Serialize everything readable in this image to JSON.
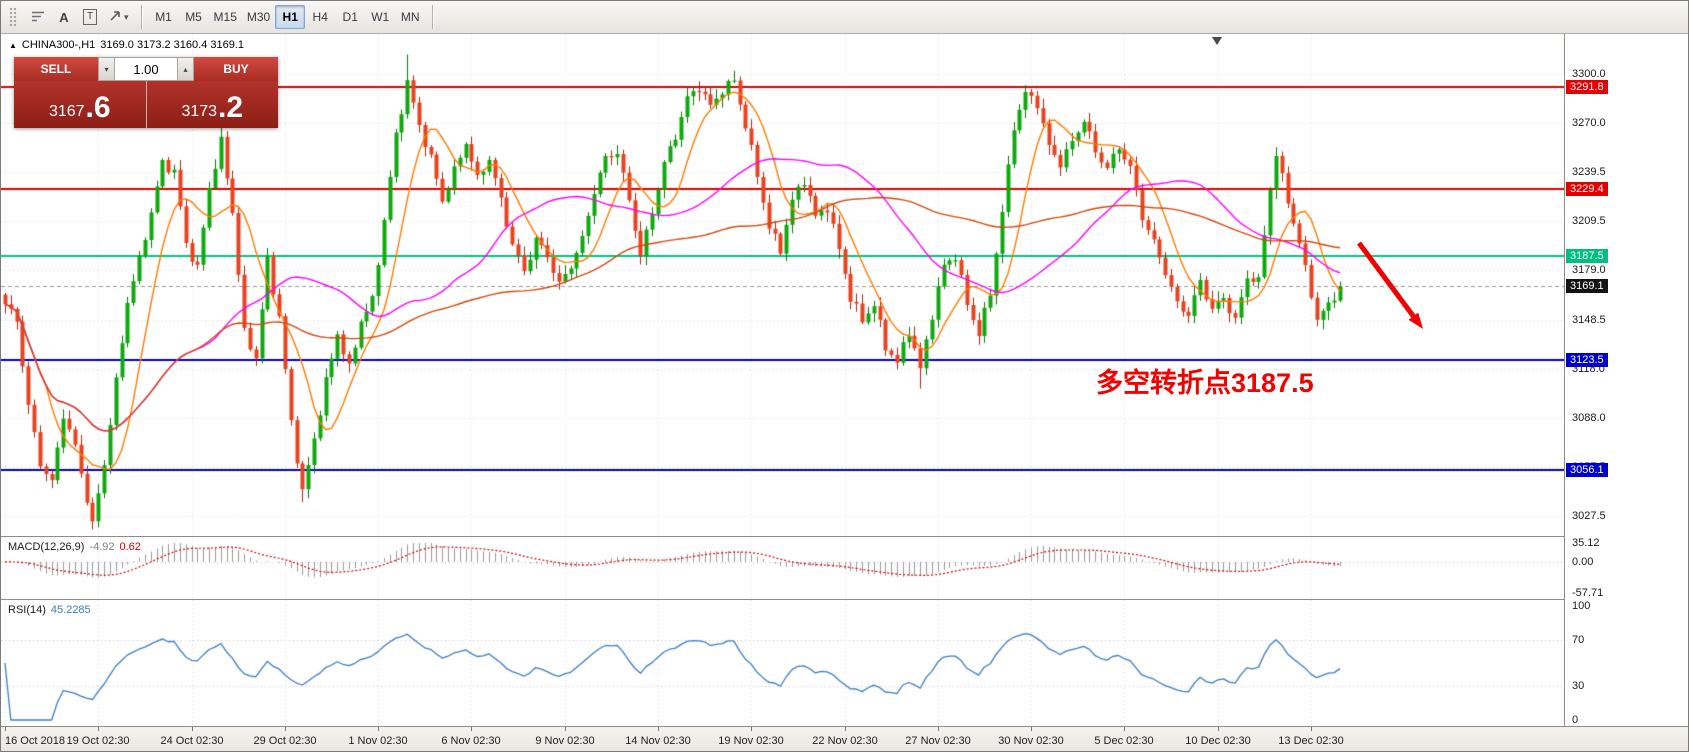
{
  "toolbar": {
    "tools": [
      {
        "name": "indicator-levels",
        "label": ""
      },
      {
        "name": "text-tool",
        "label": "A"
      },
      {
        "name": "label-tool",
        "label": "T"
      },
      {
        "name": "arrow-objects",
        "label": "",
        "dropdown_icon": "▾"
      }
    ],
    "timeframes": [
      {
        "label": "M1",
        "active": false
      },
      {
        "label": "M5",
        "active": false
      },
      {
        "label": "M15",
        "active": false
      },
      {
        "label": "M30",
        "active": false
      },
      {
        "label": "H1",
        "active": true
      },
      {
        "label": "H4",
        "active": false
      },
      {
        "label": "D1",
        "active": false
      },
      {
        "label": "W1",
        "active": false
      },
      {
        "label": "MN",
        "active": false
      }
    ]
  },
  "chart_header": {
    "toggle_icon": "▲",
    "symbol_period": "CHINA300-,H1",
    "ohlc_text": "3169.0 3173.2 3160.4 3169.1"
  },
  "trade_panel": {
    "sell_label": "SELL",
    "buy_label": "BUY",
    "volume": "1.00",
    "volume_down_icon": "▾",
    "volume_up_icon": "▴",
    "sell_price_prefix": "3167",
    "sell_price_big": ".6",
    "buy_price_prefix": "3173",
    "buy_price_big": ".2"
  },
  "price_axis": {
    "badges": [
      {
        "label": "3291.8",
        "price": 3291.8,
        "bg": "#e20000"
      },
      {
        "label": "3229.4",
        "price": 3229.4,
        "bg": "#e20000"
      },
      {
        "label": "3187.5",
        "price": 3187.5,
        "bg": "#00bf80"
      },
      {
        "label": "3169.1",
        "price": 3169.1,
        "bg": "#141414"
      },
      {
        "label": "3123.5",
        "price": 3123.5,
        "bg": "#0000cc"
      },
      {
        "label": "3056.1",
        "price": 3056.1,
        "bg": "#0000cc"
      }
    ]
  },
  "macd_panel": {
    "name": "MACD(12,26,9)",
    "main_value": "-4.92",
    "signal_value": "0.62",
    "axis_labels": [
      "35.12",
      "0.00",
      "-57.71"
    ]
  },
  "rsi_panel": {
    "name": "RSI(14)",
    "value": "45.2285",
    "axis_labels": [
      "100",
      "70",
      "30",
      "0"
    ]
  },
  "annotation": {
    "text": "多空转折点3187.5",
    "color": "#f40000"
  },
  "arrow": {
    "color": "#f40000"
  },
  "chart_data": {
    "type": "candlestick",
    "title": "CHINA300- H1 chart",
    "symbol": "CHINA300-",
    "timeframe": "H1",
    "last_ohlc": {
      "open": 3169.0,
      "high": 3173.2,
      "low": 3160.4,
      "close": 3169.1
    },
    "last_close": 3169.1,
    "num_bars": 230,
    "y_axis": {
      "top_price": 3300.0,
      "bottom_price": 3027.5
    },
    "price_ticks": [
      3300.0,
      3270.0,
      3239.5,
      3209.5,
      3179.0,
      3148.5,
      3118.0,
      3088.0,
      3057.5,
      3027.5
    ],
    "close_anchors": [
      [
        0,
        3158
      ],
      [
        2,
        3148
      ],
      [
        4,
        3095
      ],
      [
        6,
        3060
      ],
      [
        8,
        3048
      ],
      [
        10,
        3090
      ],
      [
        12,
        3070
      ],
      [
        14,
        3038
      ],
      [
        15,
        3022
      ],
      [
        17,
        3060
      ],
      [
        19,
        3110
      ],
      [
        21,
        3160
      ],
      [
        23,
        3185
      ],
      [
        25,
        3215
      ],
      [
        27,
        3245
      ],
      [
        29,
        3240
      ],
      [
        31,
        3195
      ],
      [
        33,
        3180
      ],
      [
        35,
        3230
      ],
      [
        37,
        3258
      ],
      [
        39,
        3215
      ],
      [
        41,
        3140
      ],
      [
        43,
        3125
      ],
      [
        45,
        3185
      ],
      [
        47,
        3150
      ],
      [
        49,
        3085
      ],
      [
        51,
        3042
      ],
      [
        53,
        3075
      ],
      [
        55,
        3110
      ],
      [
        57,
        3140
      ],
      [
        59,
        3118
      ],
      [
        61,
        3148
      ],
      [
        63,
        3160
      ],
      [
        65,
        3210
      ],
      [
        67,
        3262
      ],
      [
        69,
        3295
      ],
      [
        71,
        3268
      ],
      [
        73,
        3248
      ],
      [
        75,
        3222
      ],
      [
        77,
        3240
      ],
      [
        79,
        3258
      ],
      [
        81,
        3235
      ],
      [
        83,
        3248
      ],
      [
        85,
        3222
      ],
      [
        87,
        3195
      ],
      [
        89,
        3178
      ],
      [
        91,
        3198
      ],
      [
        93,
        3188
      ],
      [
        95,
        3170
      ],
      [
        97,
        3182
      ],
      [
        99,
        3198
      ],
      [
        101,
        3228
      ],
      [
        103,
        3248
      ],
      [
        105,
        3252
      ],
      [
        107,
        3222
      ],
      [
        109,
        3188
      ],
      [
        111,
        3215
      ],
      [
        113,
        3245
      ],
      [
        115,
        3262
      ],
      [
        117,
        3285
      ],
      [
        119,
        3292
      ],
      [
        121,
        3280
      ],
      [
        123,
        3290
      ],
      [
        125,
        3296
      ],
      [
        127,
        3268
      ],
      [
        129,
        3238
      ],
      [
        131,
        3205
      ],
      [
        133,
        3192
      ],
      [
        135,
        3222
      ],
      [
        137,
        3235
      ],
      [
        139,
        3212
      ],
      [
        141,
        3218
      ],
      [
        143,
        3192
      ],
      [
        145,
        3162
      ],
      [
        147,
        3148
      ],
      [
        149,
        3158
      ],
      [
        151,
        3132
      ],
      [
        153,
        3122
      ],
      [
        155,
        3142
      ],
      [
        157,
        3118
      ],
      [
        159,
        3152
      ],
      [
        161,
        3182
      ],
      [
        163,
        3188
      ],
      [
        165,
        3158
      ],
      [
        167,
        3140
      ],
      [
        169,
        3165
      ],
      [
        171,
        3215
      ],
      [
        173,
        3268
      ],
      [
        175,
        3288
      ],
      [
        177,
        3282
      ],
      [
        179,
        3255
      ],
      [
        181,
        3245
      ],
      [
        183,
        3258
      ],
      [
        185,
        3272
      ],
      [
        187,
        3252
      ],
      [
        189,
        3242
      ],
      [
        191,
        3255
      ],
      [
        193,
        3242
      ],
      [
        195,
        3212
      ],
      [
        197,
        3196
      ],
      [
        199,
        3178
      ],
      [
        201,
        3158
      ],
      [
        203,
        3152
      ],
      [
        205,
        3172
      ],
      [
        207,
        3155
      ],
      [
        209,
        3162
      ],
      [
        211,
        3148
      ],
      [
        213,
        3175
      ],
      [
        215,
        3172
      ],
      [
        217,
        3230
      ],
      [
        218,
        3250
      ],
      [
        220,
        3222
      ],
      [
        222,
        3195
      ],
      [
        224,
        3165
      ],
      [
        225,
        3148
      ],
      [
        227,
        3158
      ],
      [
        229,
        3169.1
      ]
    ],
    "wick_overrides": [
      {
        "i": 15,
        "low": 3030
      },
      {
        "i": 51,
        "low": 3036
      },
      {
        "i": 69,
        "high": 3312
      },
      {
        "i": 125,
        "high": 3302
      },
      {
        "i": 157,
        "low": 3106
      }
    ],
    "horizontal_lines": [
      {
        "price": 3291.8,
        "color": "#e20000"
      },
      {
        "price": 3229.4,
        "color": "#e20000"
      },
      {
        "price": 3187.5,
        "color": "#00c57e"
      },
      {
        "price": 3123.5,
        "color": "#0000cc"
      },
      {
        "price": 3056.1,
        "color": "#0000cc"
      }
    ],
    "last_price_marker": {
      "price": 3169.1,
      "color": "#9a9a9a"
    },
    "moving_averages": [
      {
        "period": 8,
        "color": "#ff7a00"
      },
      {
        "period": 34,
        "color": "#ff00ff"
      },
      {
        "period": 90,
        "color": "#cf4a10"
      }
    ],
    "candle_colors": {
      "up_fill": "#0fa80f",
      "up_stroke": "#077807",
      "down_fill": "#e8431f",
      "down_stroke": "#aa2612"
    },
    "macd": {
      "fast": 12,
      "slow": 26,
      "signal": 9,
      "axis_max": 35.12,
      "axis_min": -57.71,
      "histogram_color": "#999999",
      "signal_color": "#d40000"
    },
    "rsi": {
      "period": 14,
      "levels": [
        30,
        70
      ],
      "line_color": "#3b7cc4"
    },
    "time_labels": {
      "labels": [
        "16 Oct 2018",
        "19 Oct 02:30",
        "24 Oct 02:30",
        "29 Oct 02:30",
        "1 Nov 02:30",
        "6 Nov 02:30",
        "9 Nov 02:30",
        "14 Nov 02:30",
        "19 Nov 02:30",
        "22 Nov 02:30",
        "27 Nov 02:30",
        "30 Nov 02:30",
        "5 Dec 02:30",
        "10 Dec 02:30",
        "13 Dec 02:30"
      ],
      "bar_indices": [
        0,
        16,
        32,
        48,
        64,
        80,
        96,
        112,
        128,
        144,
        160,
        176,
        192,
        208,
        224
      ]
    }
  }
}
